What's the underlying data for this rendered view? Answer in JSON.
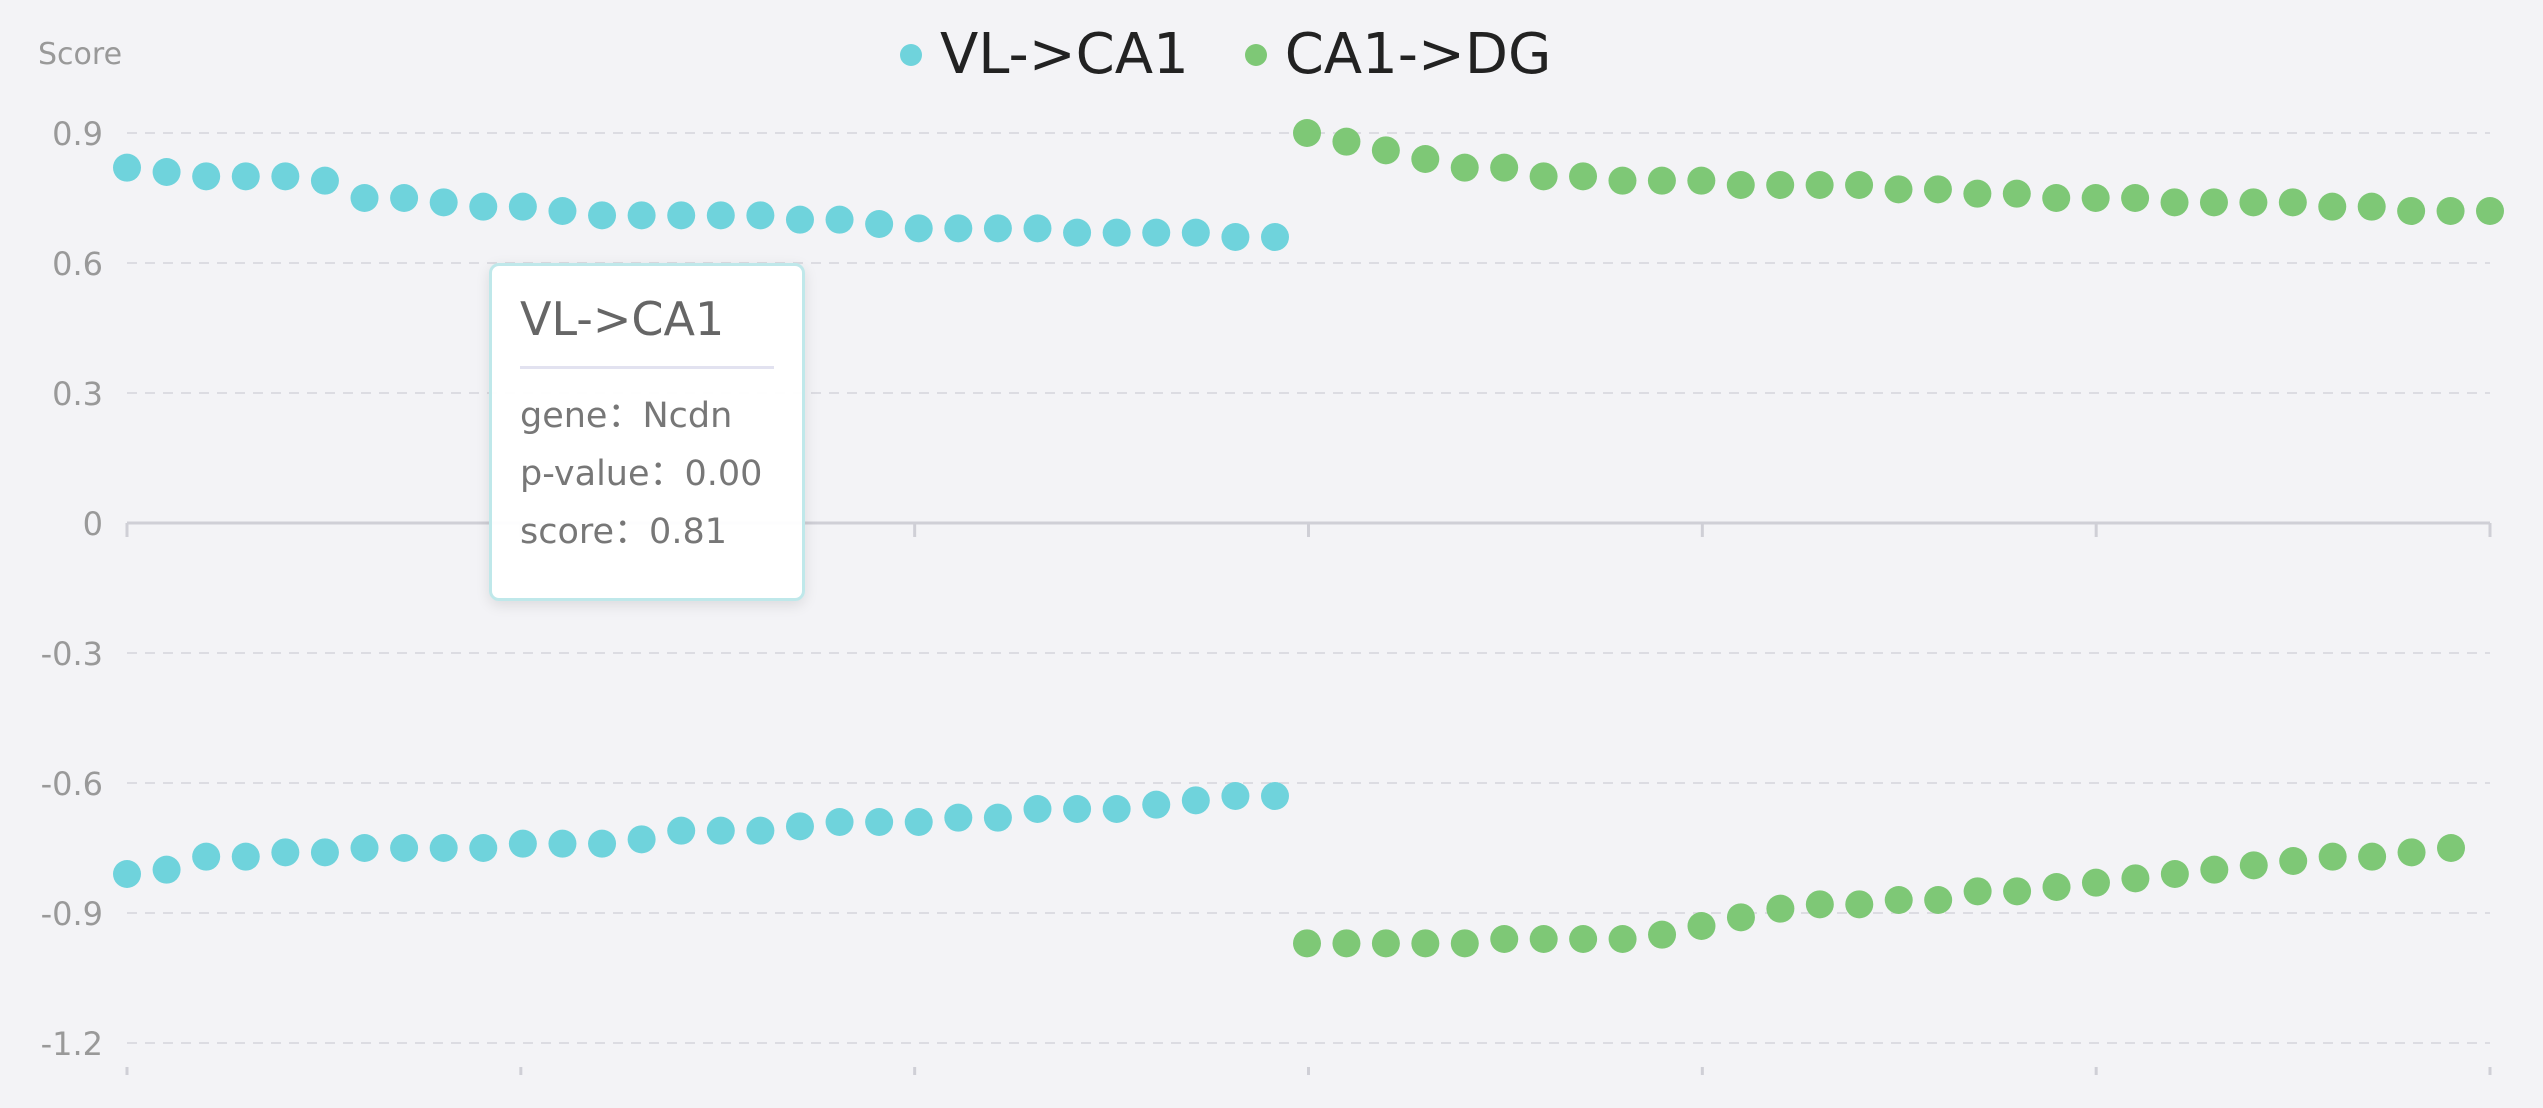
{
  "chart_data": {
    "type": "scatter",
    "ylabel": "Score",
    "ylim": [
      -1.2,
      0.9
    ],
    "yticks": [
      "0.9",
      "0.6",
      "0.3",
      "0",
      "-0.3",
      "-0.6",
      "-0.9",
      "-1.2"
    ],
    "grid": true,
    "legend_position": "top-center",
    "series": [
      {
        "name": "VL->CA1",
        "color": "#6fd3dc",
        "positive": [
          0.82,
          0.81,
          0.8,
          0.8,
          0.8,
          0.79,
          0.75,
          0.75,
          0.74,
          0.73,
          0.73,
          0.72,
          0.71,
          0.71,
          0.71,
          0.71,
          0.71,
          0.7,
          0.7,
          0.69,
          0.68,
          0.68,
          0.68,
          0.68,
          0.67,
          0.67,
          0.67,
          0.67,
          0.66,
          0.66
        ],
        "negative": [
          -0.81,
          -0.8,
          -0.77,
          -0.77,
          -0.76,
          -0.76,
          -0.75,
          -0.75,
          -0.75,
          -0.75,
          -0.74,
          -0.74,
          -0.74,
          -0.73,
          -0.71,
          -0.71,
          -0.71,
          -0.7,
          -0.69,
          -0.69,
          -0.69,
          -0.68,
          -0.68,
          -0.66,
          -0.66,
          -0.66,
          -0.65,
          -0.64,
          -0.63,
          -0.63
        ]
      },
      {
        "name": "CA1->DG",
        "color": "#7ec876",
        "positive": [
          0.9,
          0.88,
          0.86,
          0.84,
          0.82,
          0.82,
          0.8,
          0.8,
          0.79,
          0.79,
          0.79,
          0.78,
          0.78,
          0.78,
          0.78,
          0.77,
          0.77,
          0.76,
          0.76,
          0.75,
          0.75,
          0.75,
          0.74,
          0.74,
          0.74,
          0.74,
          0.73,
          0.73,
          0.72,
          0.72,
          0.72
        ],
        "negative": [
          -0.97,
          -0.97,
          -0.97,
          -0.97,
          -0.97,
          -0.96,
          -0.96,
          -0.96,
          -0.96,
          -0.95,
          -0.93,
          -0.91,
          -0.89,
          -0.88,
          -0.88,
          -0.87,
          -0.87,
          -0.85,
          -0.85,
          -0.84,
          -0.83,
          -0.82,
          -0.81,
          -0.8,
          -0.79,
          -0.78,
          -0.77,
          -0.77,
          -0.76,
          -0.75
        ]
      }
    ]
  },
  "legend": {
    "items": [
      {
        "label": "VL->CA1",
        "color": "#6fd3dc"
      },
      {
        "label": "CA1->DG",
        "color": "#7ec876"
      }
    ]
  },
  "tooltip": {
    "title": "VL->CA1",
    "gene": "gene：Ncdn",
    "pvalue": "p-value：0.00",
    "score": "score：0.81"
  }
}
